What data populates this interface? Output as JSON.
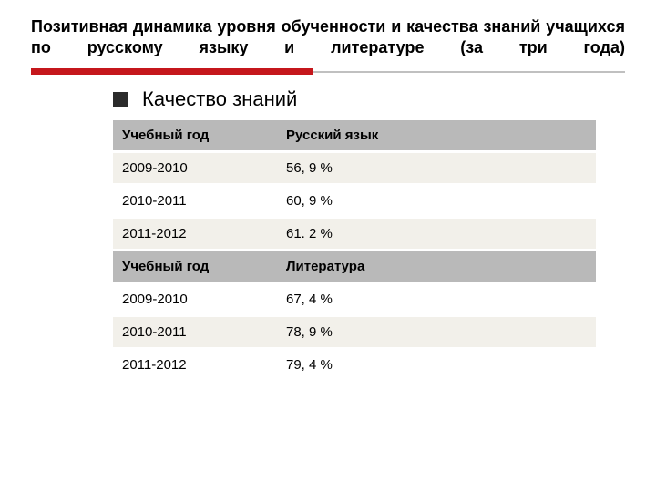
{
  "title": "Позитивная динамика уровня обученности и качества знаний учащихся по русскому языку и литературе (за три года)",
  "bullet": {
    "label": "Качество знаний",
    "square_color": "#2b2b2b"
  },
  "rule": {
    "red": "#c5171c",
    "gray": "#c0c0c0"
  },
  "table": {
    "header_bg": "#b9b9b9",
    "alt_bg": "#f2f0ea",
    "col1_header": "Учебный год",
    "sections": [
      {
        "col2_header": "Русский язык",
        "rows": [
          {
            "year": "2009-2010",
            "value": "56, 9 %"
          },
          {
            "year": "2010-2011",
            "value": "60, 9 %"
          },
          {
            "year": "2011-2012",
            "value": "61. 2 %"
          }
        ]
      },
      {
        "col2_header": "Литература",
        "rows": [
          {
            "year": "2009-2010",
            "value": "67, 4 %"
          },
          {
            "year": "2010-2011",
            "value": "78, 9 %"
          },
          {
            "year": "2011-2012",
            "value": "79, 4 %"
          }
        ]
      }
    ]
  }
}
